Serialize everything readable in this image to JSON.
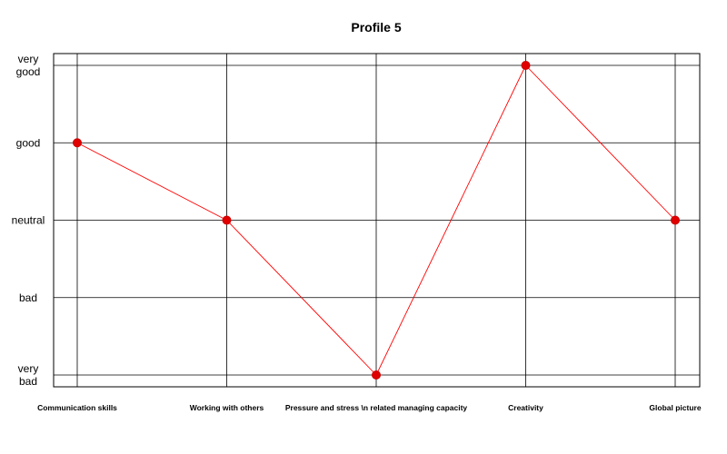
{
  "chart_data": {
    "type": "line",
    "title": "Profile 5",
    "categories": [
      "Communication skills",
      "Working with others",
      "Pressure and stress \\n related managing capacity",
      "Creativity",
      "Global picture"
    ],
    "y_levels": [
      {
        "value": 1,
        "label": "very\nbad"
      },
      {
        "value": 2,
        "label": "bad"
      },
      {
        "value": 3,
        "label": "neutral"
      },
      {
        "value": 4,
        "label": "good"
      },
      {
        "value": 5,
        "label": "very\ngood"
      }
    ],
    "series": [
      {
        "values": [
          4,
          3,
          1,
          5,
          3
        ],
        "color": "#ff0000"
      }
    ],
    "ylim": [
      1,
      5
    ],
    "grid": true,
    "legend": "none"
  }
}
